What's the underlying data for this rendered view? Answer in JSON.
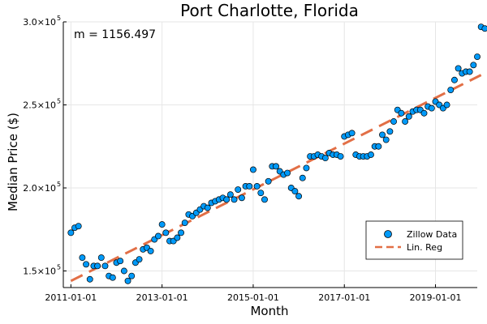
{
  "chart_data": {
    "type": "scatter",
    "title": "Port Charlotte, Florida",
    "xlabel": "Month",
    "ylabel": "Median Price ($)",
    "annotation": "m = 1156.497",
    "x_ticks": [
      "2011-01-01",
      "2013-01-01",
      "2015-01-01",
      "2017-01-01",
      "2019-01-01"
    ],
    "y_ticks": [
      {
        "mantissa": "1.5×10",
        "exp": "5"
      },
      {
        "mantissa": "2.0×10",
        "exp": "5"
      },
      {
        "mantissa": "2.5×10",
        "exp": "5"
      },
      {
        "mantissa": "3.0×10",
        "exp": "5"
      }
    ],
    "ylim": [
      140000,
      300000
    ],
    "xlim": [
      "2010-11-01",
      "2019-12-01"
    ],
    "grid": true,
    "legend_position": "bottom-right",
    "series": [
      {
        "name": "Zillow Data",
        "kind": "scatter",
        "color": "#009af9",
        "points": [
          [
            "2011-01-01",
            173000
          ],
          [
            "2011-02-01",
            176000
          ],
          [
            "2011-03-01",
            177000
          ],
          [
            "2011-04-01",
            158000
          ],
          [
            "2011-05-01",
            154000
          ],
          [
            "2011-06-01",
            145000
          ],
          [
            "2011-07-01",
            153000
          ],
          [
            "2011-08-01",
            153000
          ],
          [
            "2011-09-01",
            158000
          ],
          [
            "2011-10-01",
            153000
          ],
          [
            "2011-11-01",
            147000
          ],
          [
            "2011-12-01",
            146000
          ],
          [
            "2012-01-01",
            155000
          ],
          [
            "2012-02-01",
            156000
          ],
          [
            "2012-03-01",
            150000
          ],
          [
            "2012-04-01",
            144000
          ],
          [
            "2012-05-01",
            147000
          ],
          [
            "2012-06-01",
            155000
          ],
          [
            "2012-07-01",
            157000
          ],
          [
            "2012-08-01",
            163000
          ],
          [
            "2012-09-01",
            164000
          ],
          [
            "2012-10-01",
            162000
          ],
          [
            "2012-11-01",
            169000
          ],
          [
            "2012-12-01",
            171000
          ],
          [
            "2013-01-01",
            178000
          ],
          [
            "2013-02-01",
            173000
          ],
          [
            "2013-03-01",
            168000
          ],
          [
            "2013-04-01",
            168000
          ],
          [
            "2013-05-01",
            170000
          ],
          [
            "2013-06-01",
            173000
          ],
          [
            "2013-07-01",
            179000
          ],
          [
            "2013-08-01",
            184000
          ],
          [
            "2013-09-01",
            183000
          ],
          [
            "2013-10-01",
            185000
          ],
          [
            "2013-11-01",
            187000
          ],
          [
            "2013-12-01",
            189000
          ],
          [
            "2014-01-01",
            188000
          ],
          [
            "2014-02-01",
            191000
          ],
          [
            "2014-03-01",
            192000
          ],
          [
            "2014-04-01",
            193000
          ],
          [
            "2014-05-01",
            194000
          ],
          [
            "2014-06-01",
            193000
          ],
          [
            "2014-07-01",
            196000
          ],
          [
            "2014-08-01",
            193000
          ],
          [
            "2014-09-01",
            199000
          ],
          [
            "2014-10-01",
            194000
          ],
          [
            "2014-11-01",
            201000
          ],
          [
            "2014-12-01",
            201000
          ],
          [
            "2015-01-01",
            211000
          ],
          [
            "2015-02-01",
            201000
          ],
          [
            "2015-03-01",
            197000
          ],
          [
            "2015-04-01",
            193000
          ],
          [
            "2015-05-01",
            204000
          ],
          [
            "2015-06-01",
            213000
          ],
          [
            "2015-07-01",
            213000
          ],
          [
            "2015-08-01",
            210000
          ],
          [
            "2015-09-01",
            208000
          ],
          [
            "2015-10-01",
            209000
          ],
          [
            "2015-11-01",
            200000
          ],
          [
            "2015-12-01",
            198000
          ],
          [
            "2016-01-01",
            195000
          ],
          [
            "2016-02-01",
            206000
          ],
          [
            "2016-03-01",
            212000
          ],
          [
            "2016-04-01",
            219000
          ],
          [
            "2016-05-01",
            219000
          ],
          [
            "2016-06-01",
            220000
          ],
          [
            "2016-07-01",
            219000
          ],
          [
            "2016-08-01",
            218000
          ],
          [
            "2016-09-01",
            221000
          ],
          [
            "2016-10-01",
            220000
          ],
          [
            "2016-11-01",
            220000
          ],
          [
            "2016-12-01",
            219000
          ],
          [
            "2017-01-01",
            231000
          ],
          [
            "2017-02-01",
            232000
          ],
          [
            "2017-03-01",
            233000
          ],
          [
            "2017-04-01",
            220000
          ],
          [
            "2017-05-01",
            219000
          ],
          [
            "2017-06-01",
            219000
          ],
          [
            "2017-07-01",
            219000
          ],
          [
            "2017-08-01",
            220000
          ],
          [
            "2017-09-01",
            225000
          ],
          [
            "2017-10-01",
            225000
          ],
          [
            "2017-11-01",
            232000
          ],
          [
            "2017-12-01",
            229000
          ],
          [
            "2018-01-01",
            234000
          ],
          [
            "2018-02-01",
            240000
          ],
          [
            "2018-03-01",
            247000
          ],
          [
            "2018-04-01",
            245000
          ],
          [
            "2018-05-01",
            240000
          ],
          [
            "2018-06-01",
            243000
          ],
          [
            "2018-07-01",
            246000
          ],
          [
            "2018-08-01",
            247000
          ],
          [
            "2018-09-01",
            247000
          ],
          [
            "2018-10-01",
            245000
          ],
          [
            "2018-11-01",
            249000
          ],
          [
            "2018-12-01",
            248000
          ],
          [
            "2019-01-01",
            252000
          ],
          [
            "2019-02-01",
            250000
          ],
          [
            "2019-03-01",
            248000
          ],
          [
            "2019-04-01",
            250000
          ],
          [
            "2019-05-01",
            259000
          ],
          [
            "2019-06-01",
            265000
          ],
          [
            "2019-07-01",
            272000
          ],
          [
            "2019-08-01",
            269000
          ],
          [
            "2019-09-01",
            270000
          ],
          [
            "2019-10-01",
            270000
          ],
          [
            "2019-11-01",
            274000
          ],
          [
            "2019-12-01",
            279000
          ],
          [
            "2020-01-01",
            297000
          ],
          [
            "2020-02-01",
            296000
          ]
        ]
      },
      {
        "name": "Lin. Reg",
        "kind": "line",
        "style": "dashed",
        "color": "#e26f46",
        "points": [
          [
            "2011-01-01",
            144000
          ],
          [
            "2020-01-01",
            268000
          ]
        ]
      }
    ]
  }
}
